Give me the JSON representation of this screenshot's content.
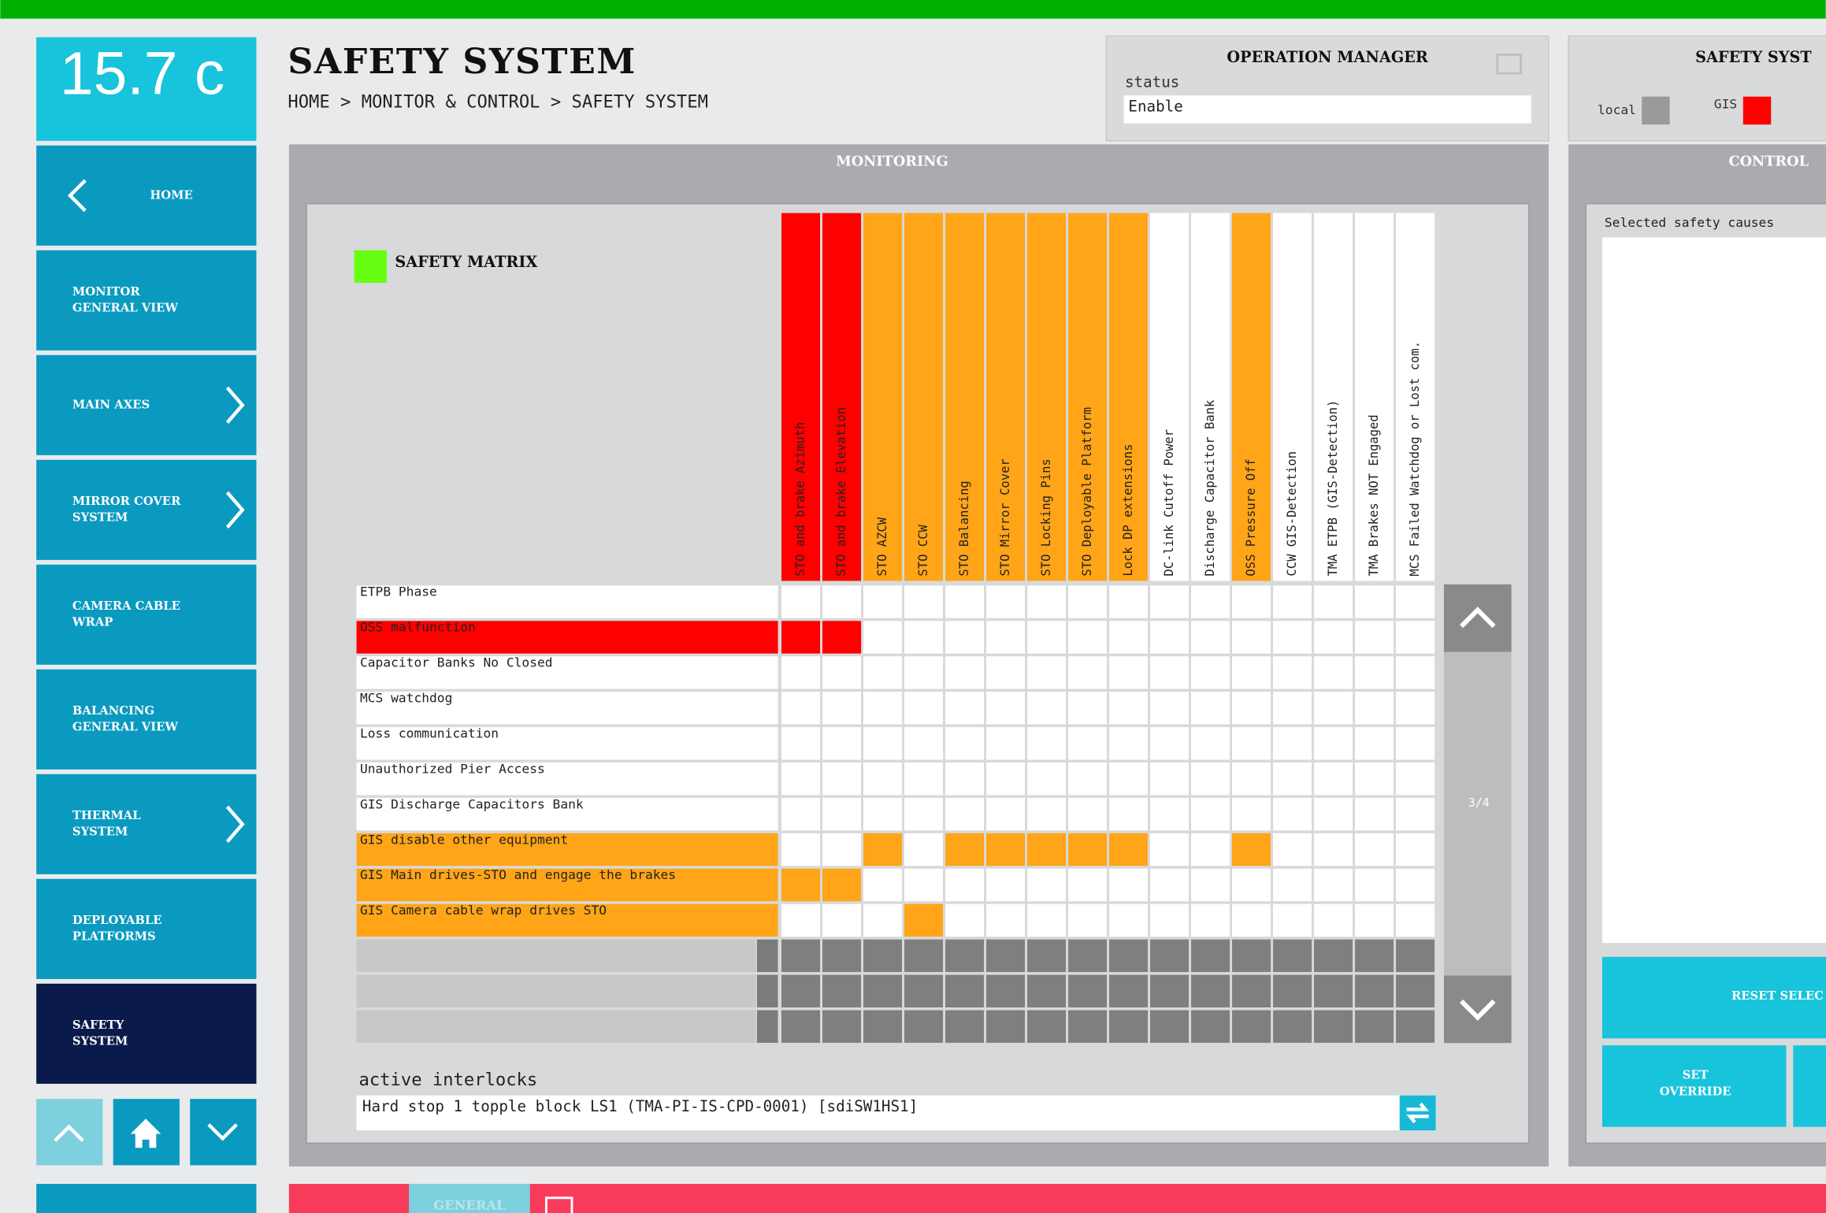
{
  "temperature": "15.7 c",
  "nav": {
    "items": [
      {
        "label": [
          "HOME"
        ],
        "arrow": "left"
      },
      {
        "label": [
          "MONITOR",
          "GENERAL VIEW"
        ],
        "arrow": null
      },
      {
        "label": [
          "MAIN AXES"
        ],
        "arrow": "right"
      },
      {
        "label": [
          "MIRROR COVER",
          "SYSTEM"
        ],
        "arrow": "right"
      },
      {
        "label": [
          "CAMERA CABLE",
          "WRAP"
        ],
        "arrow": null
      },
      {
        "label": [
          "BALANCING",
          "GENERAL VIEW"
        ],
        "arrow": null
      },
      {
        "label": [
          "THERMAL",
          "SYSTEM"
        ],
        "arrow": "right"
      },
      {
        "label": [
          "DEPLOYABLE",
          "PLATFORMS"
        ],
        "arrow": null
      },
      {
        "label": [
          "SAFETY",
          "SYSTEM"
        ],
        "arrow": null,
        "selected": true
      }
    ]
  },
  "header": {
    "title": "SAFETY SYSTEM",
    "breadcrumb": "HOME > MONITOR & CONTROL > SAFETY SYSTEM"
  },
  "operation_manager": {
    "title": "OPERATION MANAGER",
    "status_label": "status",
    "status": "Enable"
  },
  "safety_system": {
    "title": "SAFETY SYST",
    "local": "local",
    "local_color": "#9a9a9a",
    "gis": "GIS",
    "gis_color": "#ff0000"
  },
  "monitoring": {
    "title": "MONITORING",
    "matrix_title": "SAFETY MATRIX",
    "indicator_color": "#66ff11",
    "columns": [
      {
        "label": "STO and brake Azimuth",
        "color": "#ff0000"
      },
      {
        "label": "STO and brake Elevation",
        "color": "#ff0000"
      },
      {
        "label": "STO AZCW",
        "color": "#ffa517"
      },
      {
        "label": "STO CCW",
        "color": "#ffa517"
      },
      {
        "label": "STO Balancing",
        "color": "#ffa517"
      },
      {
        "label": "STO Mirror Cover",
        "color": "#ffa517"
      },
      {
        "label": "STO Locking Pins",
        "color": "#ffa517"
      },
      {
        "label": "STO Deployable Platform",
        "color": "#ffa517"
      },
      {
        "label": "Lock DP extensions",
        "color": "#ffa517"
      },
      {
        "label": "DC-link Cutoff Power",
        "color": "#ffffff"
      },
      {
        "label": "Discharge Capacitor Bank",
        "color": "#ffffff"
      },
      {
        "label": "OSS Pressure Off",
        "color": "#ffa517"
      },
      {
        "label": "CCW GIS-Detection",
        "color": "#ffffff"
      },
      {
        "label": "TMA ETPB (GIS-Detection)",
        "color": "#ffffff"
      },
      {
        "label": "TMA Brakes NOT Engaged",
        "color": "#ffffff"
      },
      {
        "label": "MCS Failed Watchdog or Lost com.",
        "color": "#ffffff"
      }
    ],
    "rows": [
      {
        "label": "ETPB Phase",
        "color": "#ffffff",
        "cells": [
          null,
          null,
          null,
          null,
          null,
          null,
          null,
          null,
          null,
          null,
          null,
          null,
          null,
          null,
          null,
          null
        ]
      },
      {
        "label": "OSS malfunction",
        "color": "#ff0000",
        "cells": [
          "#ff0000",
          "#ff0000",
          null,
          null,
          null,
          null,
          null,
          null,
          null,
          null,
          null,
          null,
          null,
          null,
          null,
          null
        ]
      },
      {
        "label": "Capacitor Banks No Closed",
        "color": "#ffffff",
        "cells": [
          null,
          null,
          null,
          null,
          null,
          null,
          null,
          null,
          null,
          null,
          null,
          null,
          null,
          null,
          null,
          null
        ]
      },
      {
        "label": "MCS watchdog",
        "color": "#ffffff",
        "cells": [
          null,
          null,
          null,
          null,
          null,
          null,
          null,
          null,
          null,
          null,
          null,
          null,
          null,
          null,
          null,
          null
        ]
      },
      {
        "label": "Loss communication",
        "color": "#ffffff",
        "cells": [
          null,
          null,
          null,
          null,
          null,
          null,
          null,
          null,
          null,
          null,
          null,
          null,
          null,
          null,
          null,
          null
        ]
      },
      {
        "label": "Unauthorized Pier Access",
        "color": "#ffffff",
        "cells": [
          null,
          null,
          null,
          null,
          null,
          null,
          null,
          null,
          null,
          null,
          null,
          null,
          null,
          null,
          null,
          null
        ]
      },
      {
        "label": "GIS Discharge Capacitors Bank",
        "color": "#ffffff",
        "cells": [
          null,
          null,
          null,
          null,
          null,
          null,
          null,
          null,
          null,
          null,
          null,
          null,
          null,
          null,
          null,
          null
        ]
      },
      {
        "label": "GIS disable other equipment",
        "color": "#ffa517",
        "cells": [
          null,
          null,
          "#ffa517",
          null,
          "#ffa517",
          "#ffa517",
          "#ffa517",
          "#ffa517",
          "#ffa517",
          null,
          null,
          "#ffa517",
          null,
          null,
          null,
          null
        ]
      },
      {
        "label": "GIS Main drives-STO and engage the brakes",
        "color": "#ffa517",
        "cells": [
          "#ffa517",
          "#ffa517",
          null,
          null,
          null,
          null,
          null,
          null,
          null,
          null,
          null,
          null,
          null,
          null,
          null,
          null
        ]
      },
      {
        "label": "GIS Camera cable wrap drives STO",
        "color": "#ffa517",
        "cells": [
          null,
          null,
          null,
          "#ffa517",
          null,
          null,
          null,
          null,
          null,
          null,
          null,
          null,
          null,
          null,
          null,
          null
        ]
      }
    ],
    "page": "3/4",
    "interlocks_label": "active interlocks",
    "interlock": "Hard stop 1 topple block LS1 (TMA-PI-IS-CPD-0001) [sdiSW1HS1]"
  },
  "control": {
    "title": "CONTROL",
    "causes_label": "Selected safety causes",
    "reset": "RESET SELEC",
    "override": [
      "SET",
      "OVERRIDE"
    ]
  },
  "footer": {
    "tab": "GENERAL"
  }
}
